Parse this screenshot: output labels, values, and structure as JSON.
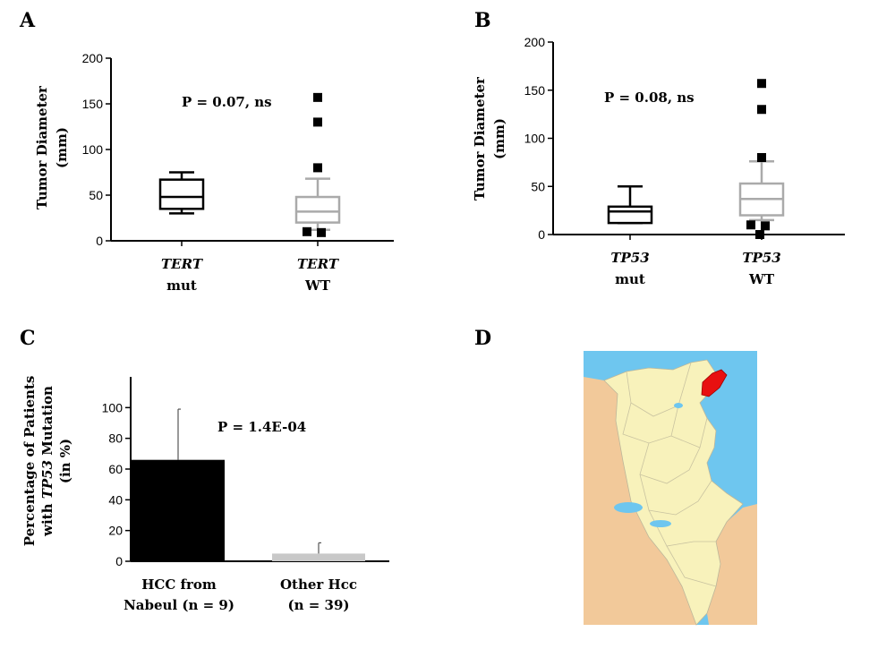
{
  "panels": {
    "A": {
      "label": "A",
      "chart_data": {
        "type": "box",
        "ylabel": "Tumor Diameter (mm)",
        "ylim": [
          0,
          200
        ],
        "yticks": [
          0,
          50,
          100,
          150,
          200
        ],
        "annotation": "P = 0.07, ns",
        "categories": [
          {
            "gene": "TERT",
            "group": "mut",
            "color": "#000000",
            "whisker_low": 30,
            "q1": 35,
            "median": 48,
            "q3": 67,
            "whisker_high": 75,
            "outliers": []
          },
          {
            "gene": "TERT",
            "group": "WT",
            "color": "#aaaaaa",
            "whisker_low": 12,
            "q1": 20,
            "median": 32,
            "q3": 48,
            "whisker_high": 68,
            "outliers": [
              157,
              130,
              80,
              10,
              9
            ]
          }
        ]
      }
    },
    "B": {
      "label": "B",
      "chart_data": {
        "type": "box",
        "ylabel": "Tumor Diameter (mm)",
        "ylim": [
          0,
          200
        ],
        "yticks": [
          0,
          50,
          100,
          150,
          200
        ],
        "annotation": "P = 0.08, ns",
        "categories": [
          {
            "gene": "TP53",
            "group": "mut",
            "color": "#000000",
            "whisker_low": 12,
            "q1": 12,
            "median": 24,
            "q3": 29,
            "whisker_high": 50,
            "outliers": []
          },
          {
            "gene": "TP53",
            "group": "WT",
            "color": "#aaaaaa",
            "whisker_low": 15,
            "q1": 20,
            "median": 37,
            "q3": 53,
            "whisker_high": 76,
            "outliers": [
              157,
              130,
              80,
              10,
              9,
              0
            ]
          }
        ]
      }
    },
    "C": {
      "label": "C",
      "chart_data": {
        "type": "bar",
        "ylabel_lines": [
          "Percentage of Patients",
          "with TP53 Mutation",
          "(in %)"
        ],
        "ylim": [
          0,
          120
        ],
        "yticks": [
          0,
          20,
          40,
          60,
          80,
          100
        ],
        "annotation": "P = 1.4E-04",
        "categories": [
          {
            "line1": "HCC from",
            "line2": "Nabeul (n = 9)",
            "value": 66,
            "error_high": 99,
            "color": "#000000"
          },
          {
            "line1": "Other Hcc",
            "line2": "(n = 39)",
            "value": 5,
            "error_high": 12,
            "color": "#c8c8c8"
          }
        ]
      }
    },
    "D": {
      "label": "D",
      "map": {
        "sea_color": "#6ec6ef",
        "land_color": "#f8f2bb",
        "neighbor_color": "#f2c99a",
        "highlight_color": "#e81010",
        "highlight_region": "Nabeul"
      }
    }
  }
}
